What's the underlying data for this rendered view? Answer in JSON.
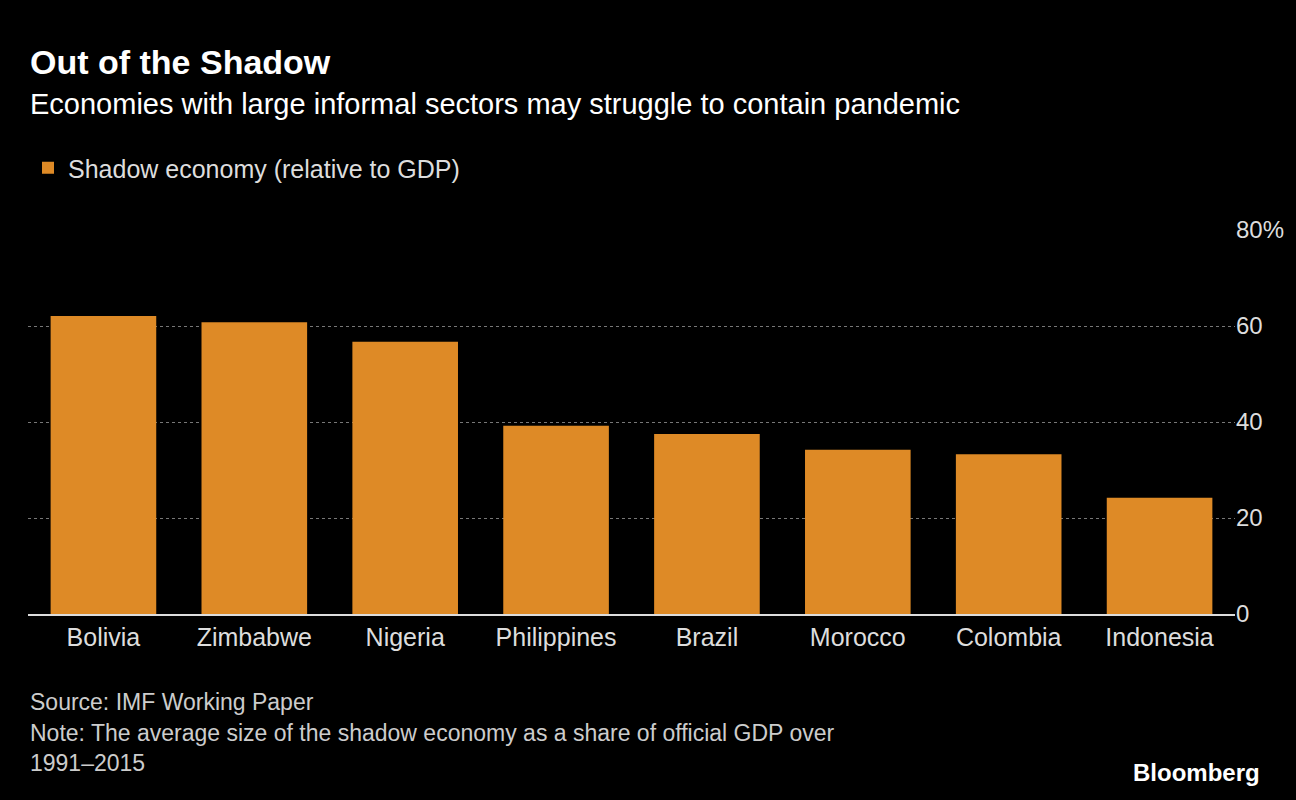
{
  "chart_data": {
    "type": "bar",
    "title": "Out of the Shadow",
    "subtitle": "Economies with large informal sectors may struggle to contain pandemic",
    "categories": [
      "Bolivia",
      "Zimbabwe",
      "Nigeria",
      "Philippines",
      "Brazil",
      "Morocco",
      "Colombia",
      "Indonesia"
    ],
    "series": [
      {
        "name": "Shadow economy (relative to GDP)",
        "color": "#de8a26",
        "values": [
          62.1,
          60.8,
          56.7,
          39.2,
          37.5,
          34.2,
          33.3,
          24.2
        ]
      }
    ],
    "ylim": [
      0,
      80
    ],
    "yticks": [
      0,
      20,
      40,
      60,
      {
        "value": 80,
        "label": "80%"
      }
    ],
    "grid": true,
    "legend": "top-left",
    "source": "Source: IMF Working Paper",
    "note": "Note: The average size of the shadow economy as a share of official GDP over\n1991–2015",
    "credit": "Bloomberg"
  }
}
